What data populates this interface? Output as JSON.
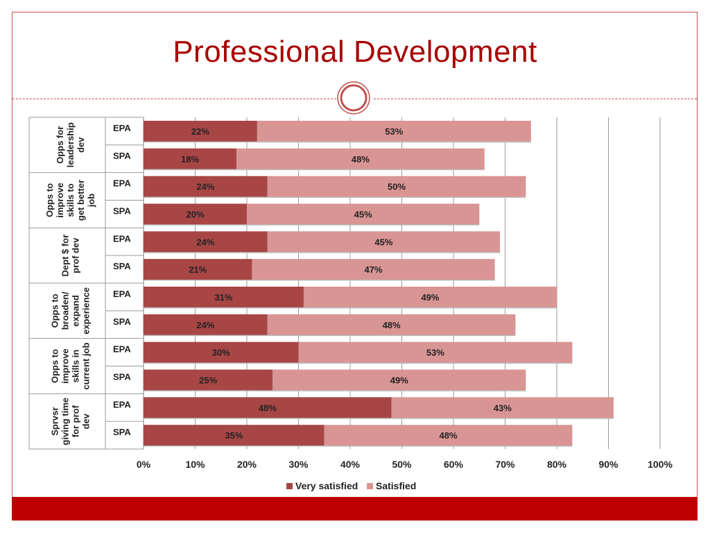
{
  "slide": {
    "title": "Professional Development"
  },
  "colors": {
    "very_satisfied": "#a84645",
    "satisfied": "#d99594",
    "accent": "#c00000",
    "title": "#a80000"
  },
  "chart_data": {
    "type": "bar",
    "orientation": "horizontal",
    "stacked": true,
    "groups": [
      {
        "label": "Opps for leadership dev",
        "lines": [
          "Opps for",
          "leadership",
          "dev"
        ],
        "rows": [
          "EPA",
          "SPA"
        ]
      },
      {
        "label": "Opps to improve skills to get better job",
        "lines": [
          "Opps to",
          "improve",
          "skills to",
          "get better",
          "job"
        ],
        "rows": [
          "EPA",
          "SPA"
        ]
      },
      {
        "label": "Dept $ for prof dev",
        "lines": [
          "Dept $ for",
          "prof dev"
        ],
        "rows": [
          "EPA",
          "SPA"
        ]
      },
      {
        "label": "Opps to broaden/ expand experience",
        "lines": [
          "Opps to",
          "broaden/",
          "expand",
          "experience"
        ],
        "rows": [
          "EPA",
          "SPA"
        ]
      },
      {
        "label": "Opps to improve skills in current job",
        "lines": [
          "Opps to",
          "improve",
          "skills in",
          "current job"
        ],
        "rows": [
          "EPA",
          "SPA"
        ]
      },
      {
        "label": "Sprvsr giving time for prof dev",
        "lines": [
          "Sprvsr",
          "giving time",
          "for prof",
          "dev"
        ],
        "rows": [
          "EPA",
          "SPA"
        ]
      }
    ],
    "series": [
      {
        "name": "Very satisfied",
        "values": [
          22,
          18,
          24,
          20,
          24,
          21,
          31,
          24,
          30,
          25,
          48,
          35
        ]
      },
      {
        "name": "Satisfied",
        "values": [
          53,
          48,
          50,
          45,
          45,
          47,
          49,
          48,
          53,
          49,
          43,
          48
        ]
      }
    ],
    "xticks": [
      "0%",
      "10%",
      "20%",
      "30%",
      "40%",
      "50%",
      "60%",
      "70%",
      "80%",
      "90%",
      "100%"
    ],
    "xlim": [
      0,
      100
    ],
    "grid": true,
    "legend": "bottom"
  }
}
